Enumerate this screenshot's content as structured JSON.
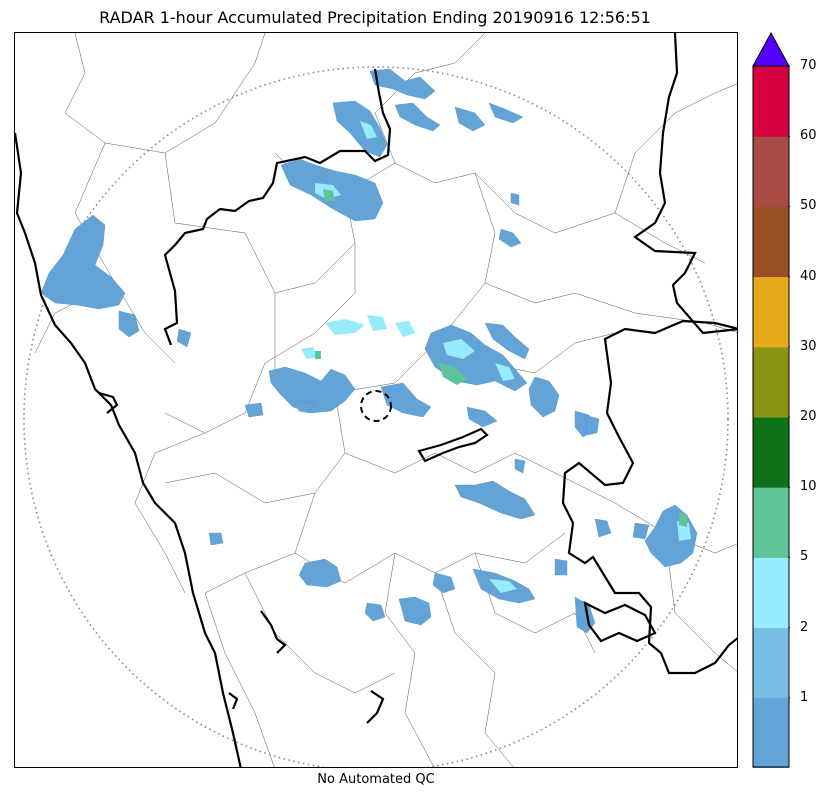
{
  "title": "RADAR 1-hour Accumulated Precipitation Ending 20190916 12:56:51",
  "footer": "No Automated QC",
  "colorbar": {
    "extend_color": "#5500ff",
    "bins": [
      {
        "from": 0,
        "to": 1,
        "color": "#63a3d6"
      },
      {
        "from": 1,
        "to": 2,
        "color": "#77bde4"
      },
      {
        "from": 2,
        "to": 5,
        "color": "#96ebfc"
      },
      {
        "from": 5,
        "to": 10,
        "color": "#5fc49a"
      },
      {
        "from": 10,
        "to": 20,
        "color": "#0e7219"
      },
      {
        "from": 20,
        "to": 30,
        "color": "#8a9516"
      },
      {
        "from": 30,
        "to": 40,
        "color": "#e8a81b"
      },
      {
        "from": 40,
        "to": 50,
        "color": "#9b4f26"
      },
      {
        "from": 50,
        "to": 60,
        "color": "#a84b45"
      },
      {
        "from": 60,
        "to": 70,
        "color": "#d4003f"
      }
    ],
    "ticks": [
      "1",
      "2",
      "5",
      "10",
      "20",
      "30",
      "40",
      "50",
      "60",
      "70"
    ]
  },
  "colors": {
    "range_ring": "#888888",
    "state_border": "#000000",
    "district_border": "#555555"
  }
}
